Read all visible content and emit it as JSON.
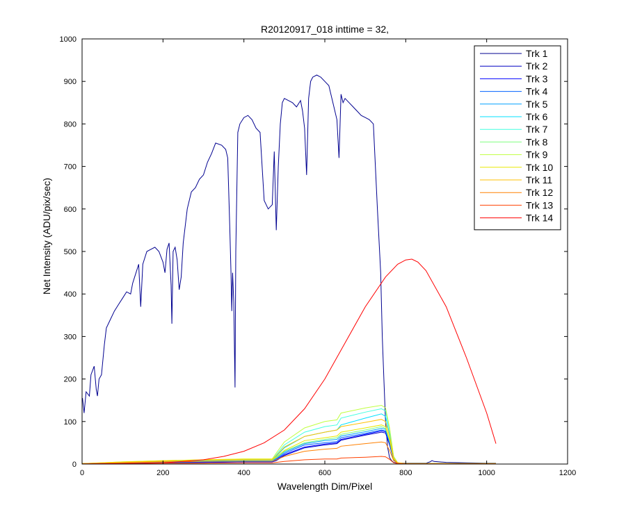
{
  "chart_data": {
    "type": "line",
    "title": "R20120917_018 inttime = 32,",
    "xlabel": "Wavelength Dim/Pixel",
    "ylabel": "Net Intensity (ADU/pix/sec)",
    "xlim": [
      0,
      1200
    ],
    "ylim": [
      0,
      1000
    ],
    "xticks": [
      0,
      200,
      400,
      600,
      800,
      1000,
      1200
    ],
    "yticks": [
      0,
      100,
      200,
      300,
      400,
      500,
      600,
      700,
      800,
      900,
      1000
    ],
    "grid": false,
    "legend_position": "top-right",
    "series": [
      {
        "name": "Trk 1",
        "color": "#00008f",
        "x": [
          1,
          5,
          10,
          18,
          22,
          30,
          35,
          38,
          42,
          48,
          55,
          60,
          70,
          80,
          90,
          100,
          110,
          120,
          125,
          130,
          140,
          145,
          150,
          160,
          170,
          180,
          190,
          200,
          205,
          210,
          215,
          220,
          222,
          225,
          230,
          235,
          240,
          245,
          250,
          260,
          270,
          280,
          290,
          300,
          310,
          320,
          330,
          345,
          355,
          360,
          365,
          368,
          370,
          372,
          375,
          378,
          380,
          385,
          390,
          400,
          410,
          420,
          430,
          440,
          450,
          460,
          470,
          475,
          480,
          485,
          490,
          495,
          500,
          510,
          520,
          530,
          540,
          545,
          550,
          555,
          560,
          565,
          570,
          580,
          590,
          600,
          610,
          620,
          630,
          635,
          640,
          645,
          650,
          660,
          670,
          680,
          690,
          700,
          710,
          720,
          730,
          738,
          742,
          746,
          750,
          755,
          760,
          765,
          770,
          775,
          780,
          790,
          800,
          850,
          860,
          865,
          870,
          900,
          950,
          1000,
          1023
        ],
        "y": [
          155,
          120,
          170,
          160,
          210,
          230,
          175,
          160,
          200,
          210,
          280,
          320,
          340,
          360,
          375,
          390,
          405,
          400,
          425,
          440,
          470,
          370,
          470,
          500,
          505,
          510,
          500,
          475,
          450,
          505,
          520,
          420,
          330,
          500,
          510,
          480,
          410,
          440,
          520,
          600,
          640,
          650,
          670,
          680,
          710,
          730,
          755,
          750,
          740,
          720,
          560,
          450,
          360,
          450,
          380,
          180,
          500,
          780,
          800,
          815,
          820,
          810,
          790,
          780,
          620,
          600,
          610,
          735,
          550,
          700,
          800,
          850,
          860,
          855,
          850,
          840,
          855,
          830,
          790,
          680,
          860,
          900,
          910,
          915,
          910,
          900,
          890,
          850,
          810,
          720,
          870,
          850,
          860,
          850,
          840,
          830,
          820,
          815,
          810,
          800,
          600,
          450,
          300,
          200,
          100,
          40,
          15,
          8,
          4,
          3,
          3,
          2,
          2,
          2,
          5,
          8,
          6,
          4,
          3,
          2,
          2
        ]
      },
      {
        "name": "Trk 2",
        "color": "#0000c4",
        "x": [
          0,
          100,
          200,
          300,
          400,
          470,
          480,
          500,
          550,
          600,
          630,
          640,
          700,
          740,
          750,
          760,
          770,
          780,
          800,
          1023
        ],
        "y": [
          1,
          2,
          3,
          4,
          5,
          5,
          8,
          20,
          38,
          45,
          48,
          56,
          68,
          75,
          73,
          45,
          10,
          3,
          1,
          1
        ]
      },
      {
        "name": "Trk 3",
        "color": "#0000ff",
        "x": [
          0,
          100,
          200,
          300,
          400,
          470,
          480,
          500,
          550,
          600,
          630,
          640,
          700,
          740,
          750,
          760,
          770,
          780,
          800,
          1023
        ],
        "y": [
          1,
          2,
          3,
          4,
          5,
          5,
          10,
          22,
          40,
          47,
          50,
          58,
          70,
          78,
          76,
          48,
          10,
          3,
          1,
          1
        ]
      },
      {
        "name": "Trk 4",
        "color": "#0060ff",
        "x": [
          0,
          100,
          200,
          300,
          400,
          470,
          480,
          500,
          550,
          600,
          630,
          640,
          700,
          740,
          750,
          760,
          770,
          780,
          800,
          1023
        ],
        "y": [
          1,
          2,
          4,
          5,
          6,
          6,
          12,
          25,
          45,
          50,
          53,
          62,
          72,
          80,
          78,
          50,
          12,
          3,
          1,
          1
        ]
      },
      {
        "name": "Trk 5",
        "color": "#00a0ff",
        "x": [
          0,
          100,
          200,
          300,
          400,
          470,
          480,
          500,
          550,
          600,
          630,
          640,
          700,
          740,
          750,
          760,
          770,
          780,
          800,
          1023
        ],
        "y": [
          1,
          3,
          4,
          6,
          7,
          7,
          14,
          28,
          48,
          55,
          58,
          66,
          76,
          84,
          82,
          52,
          12,
          3,
          1,
          1
        ]
      },
      {
        "name": "Trk 6",
        "color": "#00e0ff",
        "x": [
          0,
          100,
          200,
          300,
          400,
          470,
          480,
          500,
          550,
          600,
          630,
          640,
          700,
          740,
          750,
          760,
          770,
          780,
          800,
          1023
        ],
        "y": [
          1,
          3,
          5,
          7,
          8,
          8,
          18,
          38,
          65,
          75,
          80,
          92,
          108,
          118,
          112,
          70,
          15,
          3,
          1,
          1
        ]
      },
      {
        "name": "Trk 7",
        "color": "#40ffe0",
        "x": [
          0,
          100,
          200,
          300,
          400,
          470,
          480,
          500,
          550,
          600,
          630,
          640,
          700,
          740,
          750,
          760,
          770,
          780,
          800,
          1023
        ],
        "y": [
          1,
          4,
          6,
          8,
          10,
          10,
          22,
          45,
          75,
          88,
          92,
          108,
          122,
          130,
          125,
          80,
          18,
          3,
          1,
          1
        ]
      },
      {
        "name": "Trk 8",
        "color": "#80ff80",
        "x": [
          0,
          100,
          200,
          300,
          400,
          470,
          480,
          500,
          550,
          600,
          630,
          640,
          700,
          740,
          750,
          760,
          770,
          780,
          800,
          1023
        ],
        "y": [
          1,
          4,
          7,
          9,
          10,
          10,
          15,
          30,
          50,
          58,
          62,
          70,
          80,
          88,
          84,
          55,
          12,
          3,
          1,
          1
        ]
      },
      {
        "name": "Trk 9",
        "color": "#c0ff40",
        "x": [
          0,
          100,
          200,
          300,
          400,
          470,
          480,
          500,
          550,
          600,
          630,
          640,
          700,
          740,
          750,
          760,
          770,
          780,
          800,
          1023
        ],
        "y": [
          1,
          5,
          8,
          10,
          12,
          12,
          26,
          52,
          85,
          100,
          104,
          120,
          132,
          138,
          132,
          85,
          18,
          3,
          1,
          1
        ]
      },
      {
        "name": "Trk 10",
        "color": "#e8e800",
        "x": [
          0,
          100,
          200,
          300,
          400,
          470,
          480,
          500,
          550,
          600,
          630,
          640,
          700,
          740,
          750,
          760,
          770,
          780,
          800,
          1023
        ],
        "y": [
          1,
          5,
          8,
          10,
          12,
          12,
          16,
          32,
          55,
          62,
          66,
          75,
          85,
          92,
          88,
          58,
          12,
          3,
          1,
          1
        ]
      },
      {
        "name": "Trk 11",
        "color": "#ffc000",
        "x": [
          0,
          100,
          200,
          300,
          400,
          470,
          480,
          500,
          550,
          600,
          630,
          640,
          700,
          740,
          750,
          760,
          770,
          780,
          800,
          1023
        ],
        "y": [
          1,
          4,
          7,
          9,
          10,
          10,
          20,
          40,
          65,
          75,
          80,
          88,
          98,
          105,
          100,
          65,
          14,
          3,
          1,
          1
        ]
      },
      {
        "name": "Trk 12",
        "color": "#ff8000",
        "x": [
          0,
          100,
          200,
          300,
          400,
          470,
          480,
          500,
          550,
          600,
          630,
          640,
          700,
          740,
          750,
          760,
          770,
          780,
          800,
          1023
        ],
        "y": [
          1,
          3,
          5,
          6,
          7,
          7,
          10,
          18,
          30,
          35,
          37,
          42,
          48,
          52,
          50,
          32,
          8,
          2,
          1,
          1
        ]
      },
      {
        "name": "Trk 13",
        "color": "#ff4000",
        "x": [
          0,
          100,
          200,
          300,
          400,
          470,
          480,
          500,
          550,
          600,
          630,
          640,
          700,
          740,
          750,
          760,
          770,
          780,
          800,
          1023
        ],
        "y": [
          0,
          1,
          2,
          2,
          3,
          3,
          4,
          6,
          10,
          12,
          12,
          14,
          16,
          18,
          17,
          11,
          3,
          1,
          0,
          0
        ]
      },
      {
        "name": "Trk 14",
        "color": "#ff0000",
        "x": [
          0,
          100,
          200,
          250,
          300,
          350,
          400,
          450,
          500,
          550,
          600,
          650,
          700,
          750,
          780,
          800,
          815,
          830,
          850,
          900,
          950,
          1000,
          1023
        ],
        "y": [
          0,
          1,
          3,
          6,
          10,
          18,
          30,
          50,
          80,
          130,
          200,
          285,
          370,
          440,
          470,
          480,
          482,
          475,
          455,
          370,
          250,
          120,
          48
        ]
      }
    ]
  }
}
